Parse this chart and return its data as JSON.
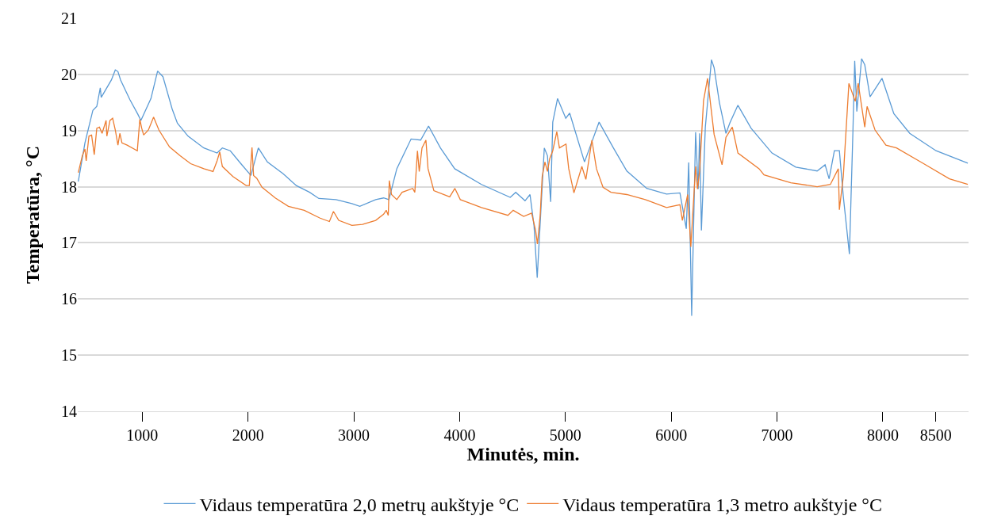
{
  "chart_data": {
    "type": "line",
    "xlabel": "Minutės, min.",
    "ylabel": "Temperatūra, °C",
    "xlim": [
      390,
      8810
    ],
    "xticks": [
      1000,
      2000,
      3000,
      4000,
      5000,
      6000,
      7000,
      8000,
      8500
    ],
    "ylim": [
      14,
      21
    ],
    "yticks": [
      14,
      15,
      16,
      17,
      18,
      19,
      20,
      21
    ],
    "grid": "y",
    "legend": "bottom",
    "marker": "none",
    "line_style": "solid",
    "series": [
      {
        "name": "Vidaus temperatūra 2,0 metrų aukštyje °C",
        "color": "#5b9bd5",
        "x": [
          395,
          458,
          533,
          570,
          603,
          612,
          708,
          745,
          770,
          795,
          883,
          958,
          987,
          1082,
          1145,
          1195,
          1283,
          1332,
          1433,
          1582,
          1707,
          1757,
          1832,
          1932,
          2027,
          2097,
          2182,
          2332,
          2456,
          2582,
          2669,
          2831,
          2981,
          3056,
          3206,
          3281,
          3331,
          3406,
          3541,
          3631,
          3706,
          3818,
          3953,
          4206,
          4478,
          4530,
          4618,
          4665,
          4703,
          4733,
          4761,
          4800,
          4830,
          4860,
          4880,
          4925,
          5003,
          5040,
          5180,
          5318,
          5453,
          5580,
          5768,
          5955,
          6082,
          6142,
          6165,
          6193,
          6230,
          6255,
          6268,
          6285,
          6322,
          6380,
          6405,
          6455,
          6517,
          6555,
          6630,
          6755,
          6952,
          7177,
          7379,
          7454,
          7492,
          7542,
          7589,
          7626,
          7684,
          7717,
          7734,
          7754,
          7799,
          7829,
          7879,
          7992,
          8104,
          8254,
          8503,
          8803
        ],
        "values": [
          18.09,
          18.78,
          19.36,
          19.43,
          19.76,
          19.59,
          19.9,
          20.08,
          20.05,
          19.9,
          19.55,
          19.29,
          19.18,
          19.57,
          20.06,
          19.96,
          19.38,
          19.13,
          18.9,
          18.69,
          18.6,
          18.69,
          18.64,
          18.41,
          18.2,
          18.69,
          18.44,
          18.23,
          18.02,
          17.9,
          17.79,
          17.77,
          17.7,
          17.65,
          17.77,
          17.8,
          17.77,
          18.32,
          18.85,
          18.83,
          19.08,
          18.69,
          18.32,
          18.04,
          17.81,
          17.9,
          17.75,
          17.86,
          17.3,
          16.38,
          17.35,
          18.69,
          18.55,
          17.73,
          19.15,
          19.57,
          19.22,
          19.31,
          18.44,
          19.15,
          18.69,
          18.28,
          17.97,
          17.87,
          17.89,
          17.25,
          18.43,
          15.7,
          18.97,
          17.96,
          18.95,
          17.22,
          19.06,
          20.26,
          20.12,
          19.5,
          18.95,
          19.14,
          19.45,
          19.04,
          18.6,
          18.35,
          18.28,
          18.39,
          18.14,
          18.64,
          18.64,
          17.83,
          16.8,
          18.97,
          20.24,
          19.34,
          20.28,
          20.17,
          19.6,
          19.93,
          19.3,
          18.95,
          18.64,
          18.42
        ]
      },
      {
        "name": "Vidaus temperatūra 1,3 metro aukštyje °C",
        "color": "#ed7d31",
        "x": [
          395,
          433,
          458,
          470,
          496,
          521,
          546,
          570,
          595,
          620,
          658,
          665,
          695,
          720,
          745,
          770,
          788,
          808,
          857,
          953,
          977,
          995,
          1013,
          1058,
          1107,
          1157,
          1257,
          1358,
          1457,
          1582,
          1669,
          1707,
          1732,
          1757,
          1857,
          1982,
          2012,
          2037,
          2052,
          2082,
          2132,
          2257,
          2381,
          2531,
          2681,
          2769,
          2807,
          2857,
          2981,
          3082,
          3206,
          3281,
          3306,
          3325,
          3335,
          3356,
          3406,
          3456,
          3556,
          3576,
          3601,
          3618,
          3644,
          3681,
          3701,
          3756,
          3906,
          3955,
          4006,
          4206,
          4456,
          4506,
          4605,
          4680,
          4718,
          4735,
          4761,
          4780,
          4806,
          4830,
          4851,
          4880,
          4918,
          4943,
          5005,
          5031,
          5080,
          5155,
          5193,
          5250,
          5293,
          5355,
          5430,
          5580,
          5755,
          5955,
          6082,
          6105,
          6155,
          6185,
          6230,
          6248,
          6268,
          6305,
          6343,
          6405,
          6480,
          6517,
          6577,
          6630,
          6830,
          6877,
          7130,
          7379,
          7504,
          7579,
          7589,
          7626,
          7679,
          7739,
          7767,
          7829,
          7851,
          7926,
          8029,
          8129,
          8376,
          8629,
          8803
        ],
        "values": [
          18.25,
          18.55,
          18.67,
          18.46,
          18.9,
          18.92,
          18.57,
          19.04,
          19.06,
          18.95,
          19.18,
          18.9,
          19.18,
          19.22,
          19.01,
          18.74,
          18.95,
          18.78,
          18.74,
          18.64,
          19.2,
          19.04,
          18.92,
          19.01,
          19.24,
          19.01,
          18.71,
          18.55,
          18.41,
          18.32,
          18.27,
          18.46,
          18.62,
          18.36,
          18.18,
          18.02,
          18.02,
          18.7,
          18.2,
          18.15,
          17.99,
          17.8,
          17.65,
          17.58,
          17.44,
          17.38,
          17.56,
          17.4,
          17.31,
          17.33,
          17.4,
          17.51,
          17.58,
          17.49,
          18.11,
          17.86,
          17.77,
          17.9,
          17.97,
          17.9,
          18.64,
          18.27,
          18.69,
          18.83,
          18.32,
          17.93,
          17.82,
          17.97,
          17.77,
          17.63,
          17.49,
          17.58,
          17.47,
          17.53,
          17.22,
          16.98,
          17.49,
          18.18,
          18.44,
          18.27,
          18.5,
          18.64,
          18.98,
          18.69,
          18.76,
          18.32,
          17.89,
          18.36,
          18.13,
          18.83,
          18.32,
          17.99,
          17.9,
          17.86,
          17.77,
          17.63,
          17.68,
          17.4,
          17.86,
          16.93,
          18.36,
          17.96,
          18.28,
          19.53,
          19.93,
          18.93,
          18.39,
          18.88,
          19.06,
          18.6,
          18.32,
          18.21,
          18.07,
          18,
          18.04,
          18.32,
          17.59,
          18.18,
          19.84,
          19.52,
          19.84,
          19.06,
          19.43,
          19.01,
          18.74,
          18.69,
          18.42,
          18.14,
          18.04
        ]
      }
    ]
  }
}
